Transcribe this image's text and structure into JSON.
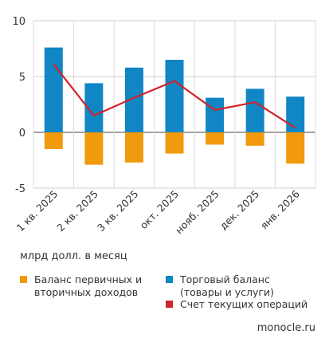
{
  "chart_data": {
    "type": "bar",
    "stacked": true,
    "categories": [
      "1 кв. 2025",
      "2 кв. 2025",
      "3 кв. 2025",
      "окт. 2025",
      "нояб. 2025",
      "дек. 2025",
      "янв. 2026"
    ],
    "ylim": [
      -5,
      10
    ],
    "yticks": [
      10,
      5,
      0,
      -5
    ],
    "grid": true,
    "legend_position": "bottom",
    "unit_label": "млрд долл. в месяц",
    "series": [
      {
        "name": "Торговый баланс\n(товары и услуги)",
        "type": "bar",
        "color": "#1086c4",
        "values": [
          7.6,
          4.4,
          5.8,
          6.5,
          3.1,
          3.9,
          3.2
        ]
      },
      {
        "name": "Баланс первичных и\nвторичных доходов",
        "type": "bar",
        "color": "#f29a0d",
        "values": [
          -1.5,
          -2.9,
          -2.7,
          -1.9,
          -1.1,
          -1.2,
          -2.8
        ]
      },
      {
        "name": "Счет текущих операций",
        "type": "line",
        "color": "#d2232a",
        "values": [
          6.1,
          1.5,
          3.1,
          4.6,
          2.0,
          2.7,
          0.4
        ]
      }
    ]
  },
  "source": "monocle.ru"
}
